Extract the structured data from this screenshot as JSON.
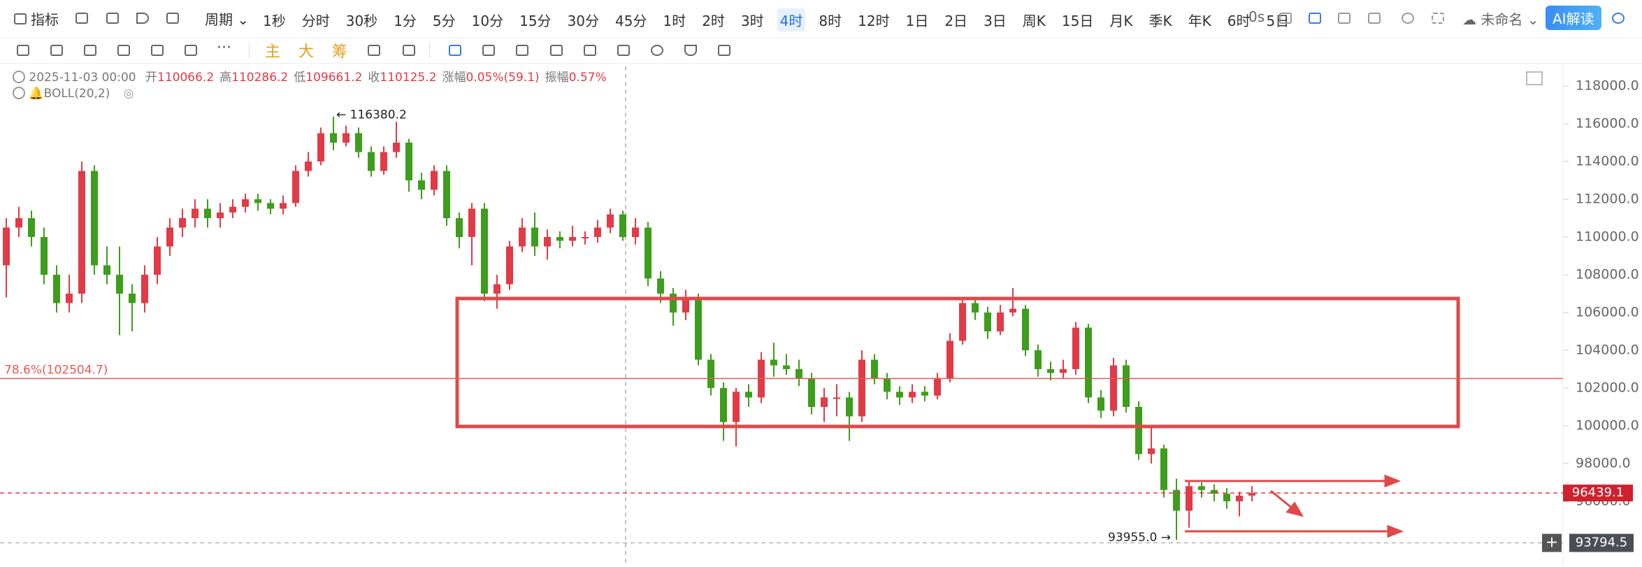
{
  "toolbar": {
    "indicator": "指标",
    "period": "周期",
    "timeframes": [
      "1秒",
      "分时",
      "30秒",
      "1分",
      "5分",
      "10分",
      "15分",
      "30分",
      "45分",
      "1时",
      "2时",
      "3时",
      "4时",
      "8时",
      "12时",
      "1日",
      "2日",
      "3日",
      "周K",
      "15日",
      "月K",
      "季K",
      "年K",
      "6时",
      "5日"
    ],
    "active": 12,
    "timer": "0s",
    "doc_name": "未命名",
    "ai": "AI解读"
  },
  "tools": {
    "main": "主",
    "big": "大",
    "chip": "筹"
  },
  "info": {
    "date": "2025-11-03 00:00",
    "items": [
      {
        "label": "开",
        "value": 110066.2
      },
      {
        "label": "高",
        "value": 110286.2
      },
      {
        "label": "低",
        "value": 109661.2
      },
      {
        "label": "收",
        "value": 110125.2
      },
      {
        "label": "涨幅",
        "value": "0.05%(59.1)"
      },
      {
        "label": "振幅",
        "value": "0.57%"
      }
    ],
    "indicator": "BOLL(20,2)"
  },
  "chart_data": {
    "type": "candlestick",
    "up_color": "#e03b46",
    "down_color": "#3e9d1c",
    "open": [
      108500,
      110500,
      111000,
      110000,
      108000,
      106500,
      107000,
      113500,
      108500,
      108000,
      107000,
      106500,
      108000,
      109500,
      110500,
      111000,
      111500,
      111000,
      111300,
      111600,
      112000,
      111800,
      111500,
      111800,
      113500,
      114000,
      115500,
      115000,
      115500,
      114500,
      113500,
      114500,
      115000,
      113000,
      112500,
      113500,
      111000,
      110000,
      111500,
      107000,
      107500,
      109500,
      110500,
      109500,
      110000,
      109800,
      110000,
      110000,
      110500,
      111200,
      110000,
      110500,
      107800,
      107000,
      106000,
      106800,
      103500,
      102000,
      100200,
      101800,
      101500,
      103500,
      103200,
      103000,
      102500,
      101000,
      101500,
      101500,
      100500,
      103500,
      102500,
      101800,
      101500,
      101800,
      101600,
      102500,
      104500,
      106500,
      106000,
      105000,
      106000,
      106200,
      104000,
      103000,
      102800,
      103000,
      105200,
      101500,
      100800,
      103200,
      101000,
      98500,
      98800,
      96600,
      95500,
      96800,
      96600,
      96400,
      96000,
      96300
    ],
    "high": [
      111000,
      111600,
      111400,
      110500,
      108500,
      108000,
      114000,
      113800,
      109500,
      109500,
      107500,
      108500,
      110000,
      111000,
      111500,
      112000,
      112000,
      111800,
      112000,
      112300,
      112300,
      112000,
      112200,
      113800,
      114500,
      115800,
      116380.2,
      115900,
      115800,
      114800,
      114800,
      116100,
      115200,
      113400,
      113800,
      113800,
      111300,
      111800,
      111800,
      108000,
      109800,
      111000,
      111300,
      110400,
      110300,
      110600,
      110300,
      110900,
      111500,
      111400,
      111000,
      110800,
      108200,
      107300,
      107200,
      107000,
      103800,
      102300,
      102000,
      102200,
      103900,
      104400,
      103800,
      103500,
      102800,
      102000,
      102200,
      101800,
      104000,
      103800,
      102800,
      102100,
      102200,
      102100,
      102800,
      104900,
      106800,
      106800,
      106300,
      106400,
      107300,
      106400,
      104300,
      103400,
      103500,
      105500,
      105400,
      101900,
      103600,
      103500,
      101300,
      99900,
      99000,
      97200,
      97100,
      97000,
      96900,
      96700,
      96500,
      96800
    ],
    "low": [
      106800,
      110000,
      109500,
      107500,
      106000,
      106000,
      106500,
      108000,
      107500,
      104800,
      105000,
      106000,
      107500,
      109000,
      110000,
      110500,
      110500,
      110500,
      111000,
      111300,
      111400,
      111200,
      111200,
      111600,
      113200,
      113800,
      114600,
      114800,
      114200,
      113200,
      113300,
      114200,
      112400,
      112000,
      112200,
      110600,
      109400,
      108500,
      106600,
      106200,
      107200,
      109200,
      109000,
      108800,
      109400,
      109500,
      109600,
      109700,
      110200,
      109800,
      109600,
      107400,
      106500,
      105300,
      105600,
      103200,
      101600,
      99200,
      98900,
      101000,
      101200,
      102600,
      102700,
      102100,
      100600,
      100200,
      100500,
      99200,
      100200,
      102200,
      101400,
      101100,
      101200,
      101300,
      101400,
      102300,
      104300,
      105600,
      104600,
      104800,
      105800,
      103700,
      102600,
      102400,
      102500,
      102700,
      101200,
      100400,
      100500,
      100700,
      98200,
      98000,
      96200,
      93955,
      94600,
      96200,
      96000,
      95600,
      95200,
      96000
    ],
    "close": [
      110500,
      111000,
      110000,
      108000,
      106500,
      107000,
      113500,
      108500,
      108000,
      107000,
      106500,
      108000,
      109500,
      110500,
      111000,
      111500,
      111000,
      111300,
      111600,
      112000,
      111800,
      111500,
      111800,
      113500,
      114000,
      115500,
      115000,
      115500,
      114500,
      113500,
      114500,
      115000,
      113000,
      112500,
      113500,
      111000,
      110000,
      111500,
      107000,
      107500,
      109500,
      110500,
      109500,
      110000,
      109800,
      110000,
      110000,
      110500,
      111200,
      110000,
      110500,
      107800,
      107000,
      106000,
      106800,
      103500,
      102000,
      100200,
      101800,
      101500,
      103500,
      103200,
      103000,
      102500,
      101000,
      101500,
      101500,
      100500,
      103500,
      102500,
      101800,
      101500,
      101800,
      101600,
      102500,
      104500,
      106500,
      106000,
      105000,
      106000,
      106200,
      104000,
      103000,
      102800,
      103000,
      105200,
      101500,
      100800,
      103200,
      101000,
      98500,
      98800,
      96600,
      95500,
      96800,
      96600,
      96400,
      96000,
      96300,
      96439.1
    ],
    "ylim": [
      92000,
      119500
    ],
    "yticks": [
      {
        "value": 96000,
        "label": "96000.0"
      },
      {
        "value": 98000,
        "label": "98000.0"
      },
      {
        "value": 100000,
        "label": "100000.0"
      },
      {
        "value": 102000,
        "label": "102000.0"
      },
      {
        "value": 104000,
        "label": "104000.0"
      },
      {
        "value": 106000,
        "label": "106000.0"
      },
      {
        "value": 108000,
        "label": "108000.0"
      },
      {
        "value": 110000,
        "label": "110000.0"
      },
      {
        "value": 112000,
        "label": "112000.0"
      },
      {
        "value": 114000,
        "label": "114000.0"
      },
      {
        "value": 116000,
        "label": "116000.0"
      },
      {
        "value": 118000,
        "label": "118000.0"
      }
    ],
    "high_label": "← 116380.2",
    "low_label": "93955.0 →",
    "fib_level": 102504.7,
    "fib_label": "78.6%(102504.7)",
    "last_price": 96439.1,
    "cursor_price": 93794.5
  }
}
